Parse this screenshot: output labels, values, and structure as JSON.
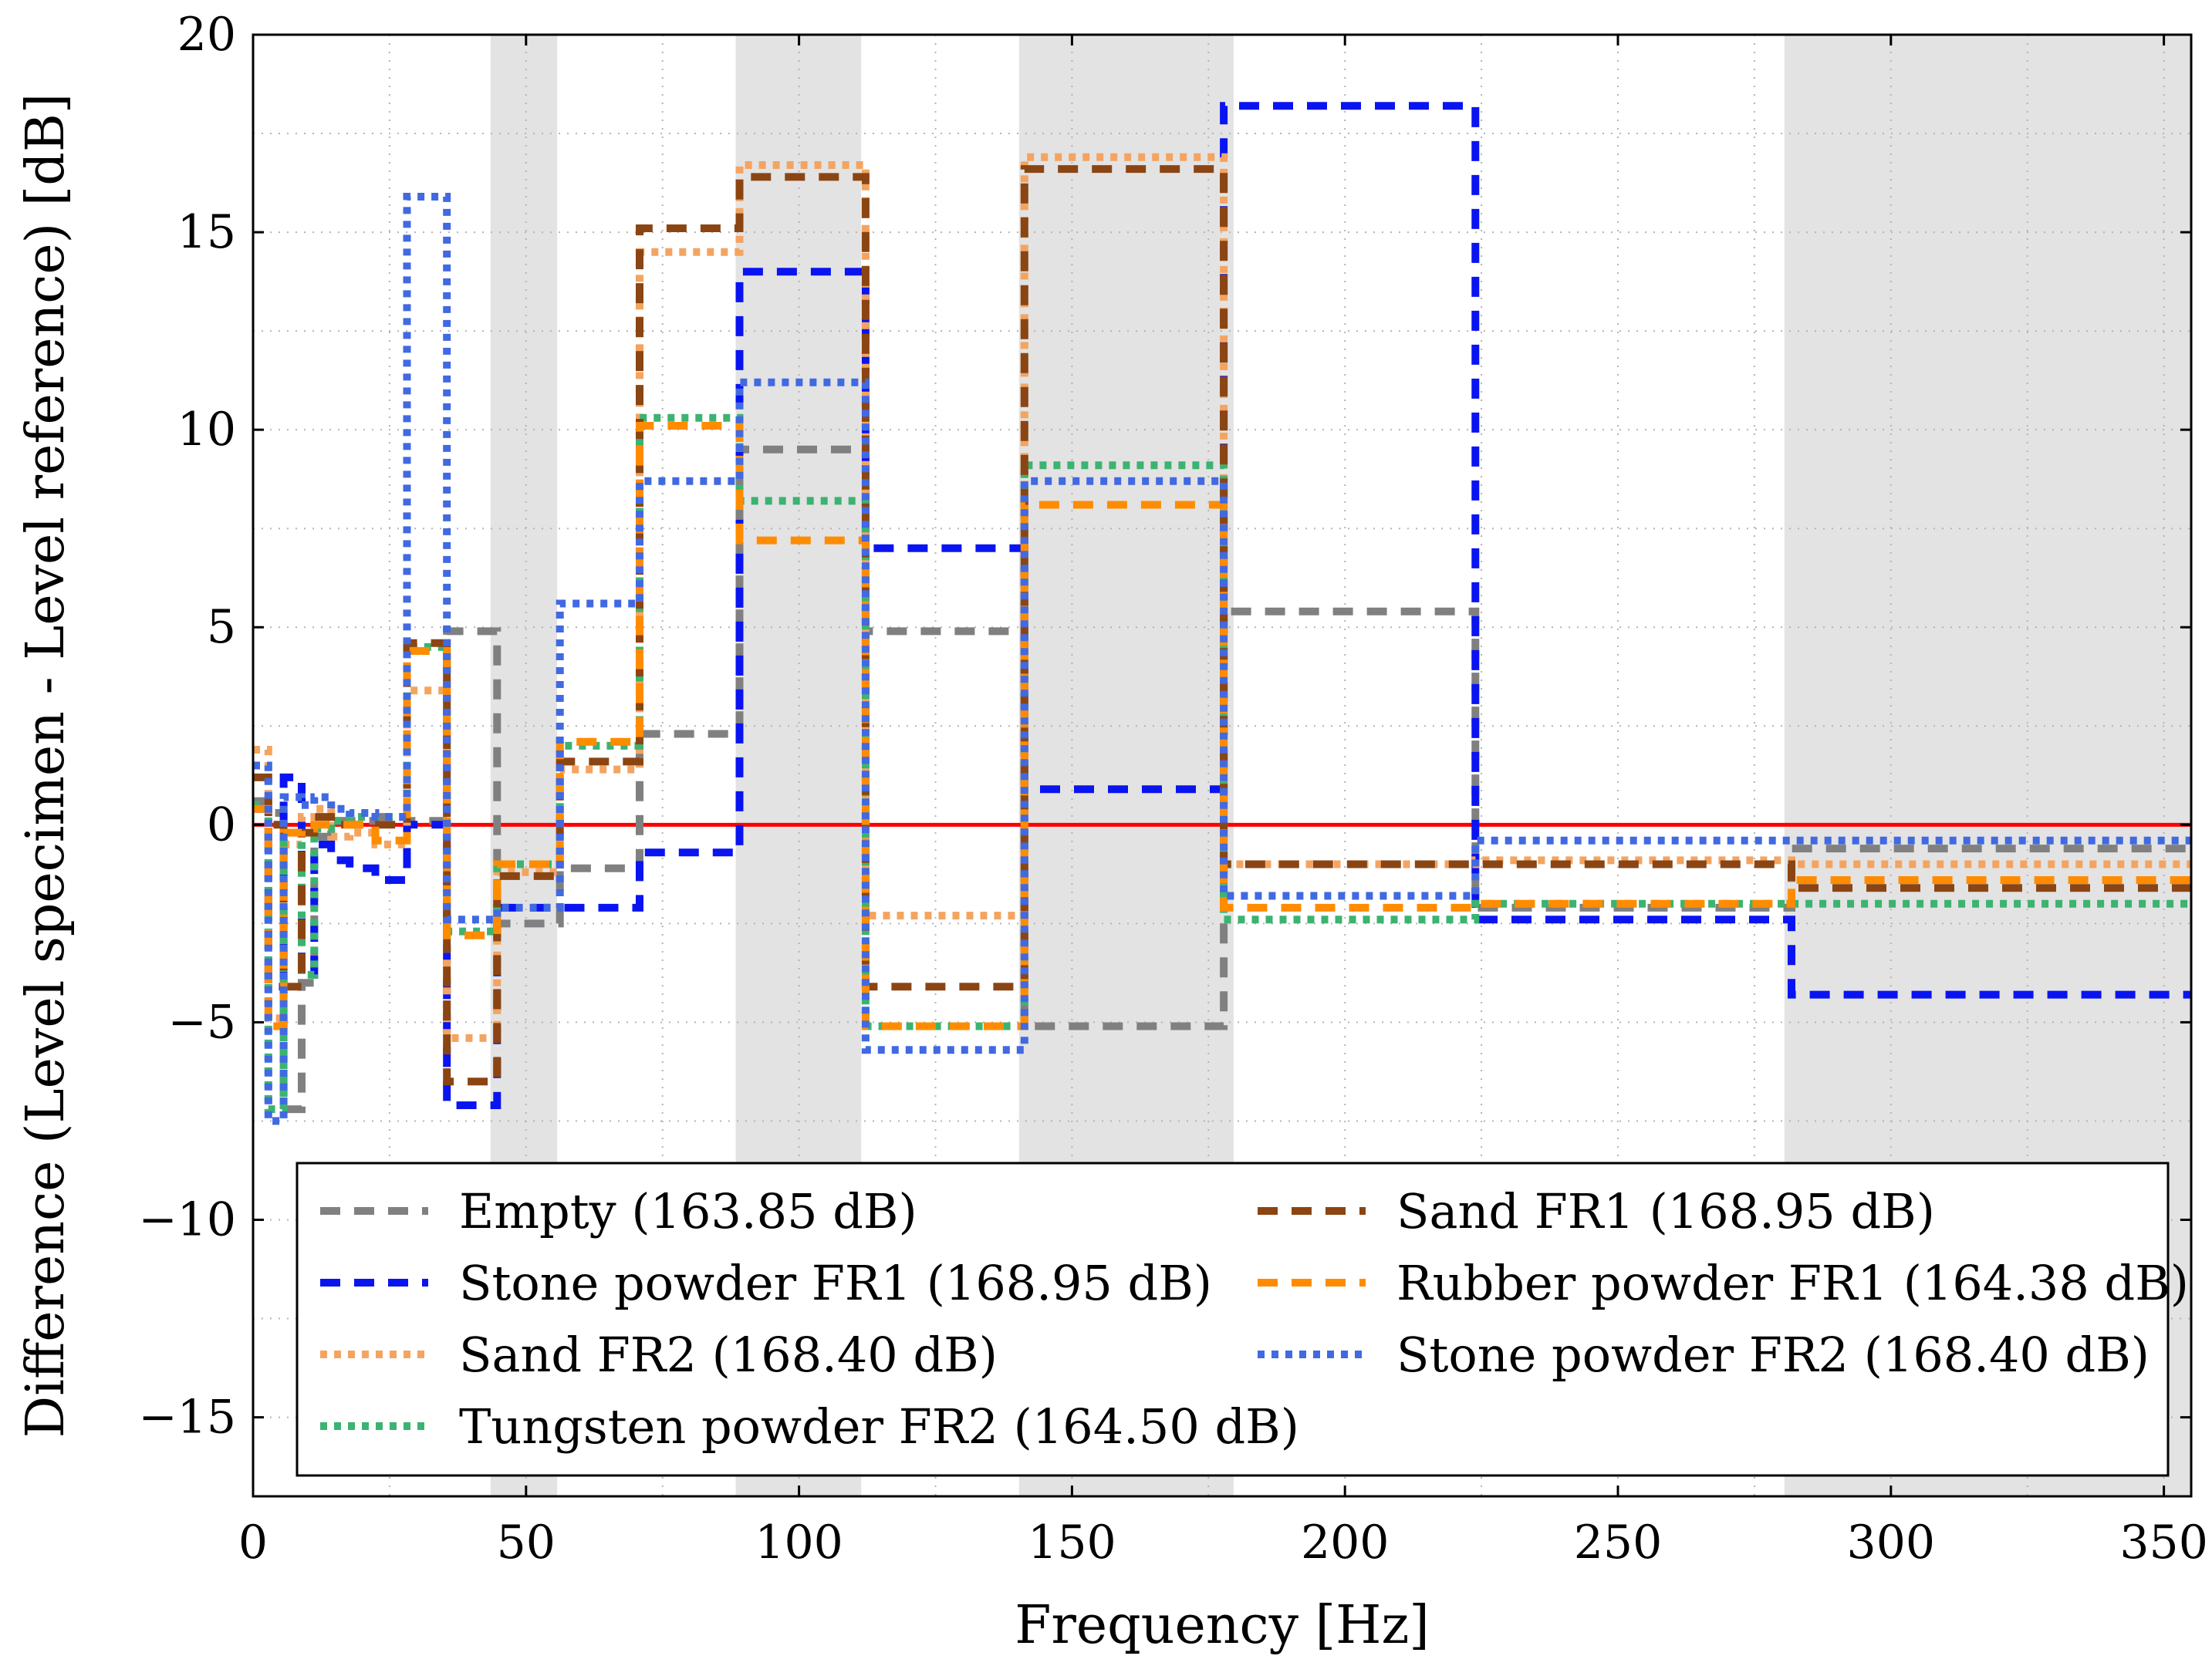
{
  "chart_data": {
    "type": "line",
    "subtype": "step",
    "title": "",
    "xlabel": "Frequency [Hz]",
    "ylabel": "Difference (Level specimen - Level reference) [dB]",
    "xlim": [
      0,
      355
    ],
    "ylim": [
      -17,
      20
    ],
    "grid": true,
    "legend_position": "bottom-center",
    "x_ticks": [
      {
        "value": 0,
        "label": "0"
      },
      {
        "value": 50,
        "label": "50"
      },
      {
        "value": 100,
        "label": "100"
      },
      {
        "value": 150,
        "label": "150"
      },
      {
        "value": 200,
        "label": "200"
      },
      {
        "value": 250,
        "label": "250"
      },
      {
        "value": 300,
        "label": "300"
      },
      {
        "value": 350,
        "label": "350"
      }
    ],
    "y_ticks": [
      {
        "value": -15,
        "label": "−15"
      },
      {
        "value": -10,
        "label": "−10"
      },
      {
        "value": -5,
        "label": "−5"
      },
      {
        "value": 0,
        "label": "0"
      },
      {
        "value": 5,
        "label": "5"
      },
      {
        "value": 10,
        "label": "10"
      },
      {
        "value": 15,
        "label": "15"
      },
      {
        "value": 20,
        "label": "20"
      }
    ],
    "shaded_bands": [
      [
        43.5,
        55.7
      ],
      [
        88.4,
        111.4
      ],
      [
        140.3,
        179.6
      ],
      [
        280.5,
        355
      ]
    ],
    "reference_line": {
      "y": 0,
      "color": "#ff0000"
    },
    "band_edges": [
      0,
      2.8,
      5.6,
      8.9,
      11.2,
      14.3,
      17.7,
      22.4,
      28.2,
      35.5,
      44.7,
      56.2,
      70.8,
      89.1,
      112.2,
      141.3,
      177.8,
      223.9,
      281.8,
      355
    ],
    "series": [
      {
        "name": "Empty (163.85 dB)",
        "color": "#808080",
        "style": "dashed",
        "values": [
          0.6,
          0.3,
          -7.2,
          -4.0,
          -0.3,
          0.1,
          0.1,
          0.2,
          0.1,
          4.9,
          -2.5,
          -1.1,
          2.3,
          9.5,
          4.9,
          -5.1,
          5.4,
          -2.1,
          -0.6
        ]
      },
      {
        "name": "Stone powder FR1 (168.95 dB)",
        "color": "#0a14f0",
        "style": "dashed",
        "values": [
          0.4,
          -4.1,
          1.2,
          -3.8,
          -0.5,
          -0.9,
          -1.1,
          -1.4,
          0.0,
          -7.1,
          -2.1,
          -2.1,
          -0.7,
          14.0,
          7.0,
          0.9,
          18.2,
          -2.4,
          -4.3
        ]
      },
      {
        "name": "Sand FR2 (168.40 dB)",
        "color": "#f4a460",
        "style": "dotted",
        "values": [
          1.9,
          -4.9,
          -0.5,
          0.2,
          0.4,
          -0.3,
          -0.2,
          -0.5,
          3.4,
          -5.4,
          -1.2,
          1.4,
          14.5,
          16.7,
          -2.3,
          16.9,
          -1.0,
          -0.9,
          -1.0
        ]
      },
      {
        "name": "Tungsten powder FR2 (164.50 dB)",
        "color": "#3cb371",
        "style": "dotted",
        "values": [
          0.5,
          -7.2,
          -0.2,
          -3.8,
          -0.1,
          0.1,
          0.2,
          0.2,
          4.5,
          -2.7,
          -1.0,
          2.0,
          10.3,
          8.2,
          -5.1,
          9.1,
          -2.4,
          -2.0,
          -2.0
        ]
      },
      {
        "name": "Sand FR1 (168.95 dB)",
        "color": "#8b4513",
        "style": "dashed",
        "values": [
          1.2,
          0.0,
          -4.1,
          -0.2,
          0.2,
          0.0,
          0.0,
          0.0,
          4.6,
          -6.5,
          -1.3,
          1.6,
          15.1,
          16.4,
          -4.1,
          16.6,
          -1.0,
          -1.0,
          -1.6
        ]
      },
      {
        "name": "Rubber powder FR1 (164.38 dB)",
        "color": "#ff8c00",
        "style": "dashed",
        "values": [
          0.4,
          -5.1,
          -0.2,
          -0.1,
          0.0,
          0.0,
          0.0,
          -0.4,
          4.4,
          -2.8,
          -1.0,
          2.1,
          10.1,
          7.2,
          -5.1,
          8.1,
          -2.1,
          -2.0,
          -1.4
        ]
      },
      {
        "name": "Stone powder FR2 (168.40 dB)",
        "color": "#4169e1",
        "style": "dotted",
        "values": [
          1.5,
          -7.5,
          0.7,
          0.5,
          0.7,
          0.4,
          0.3,
          0.2,
          15.9,
          -2.4,
          -2.1,
          5.6,
          8.7,
          11.2,
          -5.7,
          8.7,
          -1.8,
          -0.4,
          -0.4
        ]
      }
    ]
  }
}
